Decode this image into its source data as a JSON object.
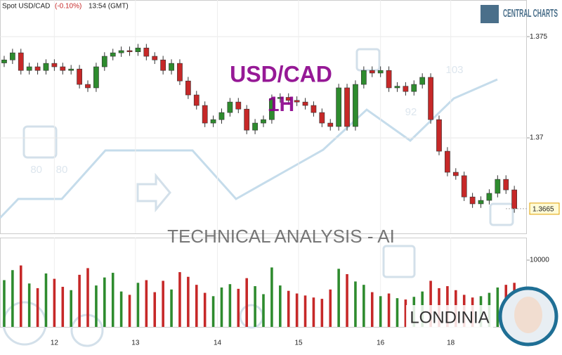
{
  "chart_data": {
    "type": "candlestick",
    "title": "Spot USD/CAD",
    "change": "(-0.10%)",
    "time": "13:54 (GMT)",
    "open": [
      1.3737,
      1.37385,
      1.3742,
      1.37333,
      1.37351,
      1.37333,
      1.37368,
      1.37351,
      1.37333,
      1.3734,
      1.37264,
      1.37247,
      1.37351,
      1.37403,
      1.3742,
      1.37431,
      1.37425,
      1.37444,
      1.37403,
      1.37385,
      1.37333,
      1.37368,
      1.37281,
      1.37212,
      1.3716,
      1.37073,
      1.3709,
      1.37125,
      1.37177,
      1.37142,
      1.37038,
      1.37073,
      1.3709,
      1.37194,
      1.372,
      1.37185,
      1.37177,
      1.3716,
      1.37125,
      1.37073,
      1.37056,
      1.37247,
      1.37056,
      1.37264,
      1.37333,
      1.3732,
      1.37333,
      1.37247,
      1.37255,
      1.37229,
      1.37264,
      1.37299,
      1.3709,
      1.36934,
      1.3683,
      1.36813,
      1.36708,
      1.36674,
      1.36691,
      1.36726,
      1.36795,
      1.36743
    ],
    "high": [
      1.37405,
      1.3744,
      1.3744,
      1.37371,
      1.37371,
      1.37388,
      1.37388,
      1.37371,
      1.3736,
      1.3736,
      1.37284,
      1.37371,
      1.37423,
      1.3744,
      1.37451,
      1.37451,
      1.37464,
      1.37464,
      1.37423,
      1.37405,
      1.37388,
      1.37388,
      1.37301,
      1.37232,
      1.3718,
      1.3711,
      1.37145,
      1.37197,
      1.37197,
      1.37162,
      1.37093,
      1.3711,
      1.37214,
      1.3722,
      1.3722,
      1.37205,
      1.37197,
      1.3718,
      1.37145,
      1.37093,
      1.37267,
      1.37267,
      1.37284,
      1.37353,
      1.37353,
      1.37353,
      1.37353,
      1.37275,
      1.37275,
      1.37284,
      1.37319,
      1.37319,
      1.3711,
      1.36954,
      1.3685,
      1.36833,
      1.36728,
      1.36711,
      1.36746,
      1.36815,
      1.36815,
      1.36763
    ],
    "low": [
      1.3735,
      1.37365,
      1.37313,
      1.37313,
      1.37313,
      1.37313,
      1.37331,
      1.37313,
      1.37313,
      1.37244,
      1.37227,
      1.37227,
      1.37331,
      1.37383,
      1.374,
      1.37405,
      1.37405,
      1.37383,
      1.37365,
      1.37313,
      1.37313,
      1.37261,
      1.37192,
      1.3714,
      1.37053,
      1.37053,
      1.3707,
      1.37105,
      1.37122,
      1.37018,
      1.37018,
      1.37053,
      1.3707,
      1.37174,
      1.37165,
      1.37157,
      1.3714,
      1.37105,
      1.37053,
      1.37036,
      1.37036,
      1.37036,
      1.37036,
      1.37244,
      1.373,
      1.373,
      1.37227,
      1.37227,
      1.37209,
      1.37209,
      1.37244,
      1.3707,
      1.36914,
      1.3681,
      1.36793,
      1.36688,
      1.36654,
      1.36654,
      1.36671,
      1.36706,
      1.36723,
      1.3663
    ],
    "close": [
      1.37385,
      1.3742,
      1.37333,
      1.37351,
      1.37333,
      1.37368,
      1.37351,
      1.37333,
      1.3734,
      1.37264,
      1.37247,
      1.37351,
      1.37403,
      1.3742,
      1.37431,
      1.37425,
      1.37444,
      1.37403,
      1.37385,
      1.37333,
      1.37368,
      1.37281,
      1.37212,
      1.3716,
      1.37073,
      1.3709,
      1.37125,
      1.37177,
      1.37142,
      1.37038,
      1.37073,
      1.3709,
      1.37194,
      1.372,
      1.37185,
      1.37177,
      1.3716,
      1.37125,
      1.37073,
      1.37056,
      1.37247,
      1.37056,
      1.37264,
      1.37333,
      1.3732,
      1.37333,
      1.37247,
      1.37255,
      1.37229,
      1.37264,
      1.37299,
      1.3709,
      1.36934,
      1.3683,
      1.36813,
      1.36708,
      1.36674,
      1.36691,
      1.36726,
      1.36795,
      1.36743,
      1.3665
    ],
    "up_color": "#2e8b2e",
    "down_color": "#c62828",
    "xlim": [
      -0.5,
      62.5
    ],
    "xticks": [
      {
        "value": 6,
        "label": "12"
      },
      {
        "value": 15.7,
        "label": "13"
      },
      {
        "value": 25.5,
        "label": "14"
      },
      {
        "value": 35.2,
        "label": "15"
      },
      {
        "value": 45,
        "label": "16"
      },
      {
        "value": 53.4,
        "label": "18"
      }
    ],
    "ylim": [
      1.36528,
      1.37681
    ],
    "yticks": [
      1.37,
      1.375
    ],
    "grid": true,
    "last_price": 1.3665,
    "volume": {
      "values": [
        7000,
        8500,
        9200,
        6500,
        5800,
        8000,
        7200,
        6000,
        5500,
        7800,
        8800,
        6200,
        7400,
        8100,
        5300,
        4800,
        6600,
        7000,
        5200,
        6900,
        5600,
        8200,
        7500,
        6300,
        5100,
        4600,
        5900,
        6400,
        5700,
        7300,
        6100,
        4900,
        8900,
        6200,
        5400,
        5000,
        4700,
        4400,
        4200,
        5600,
        8700,
        7900,
        6800,
        6300,
        5200,
        4600,
        5000,
        4300,
        4100,
        4500,
        5300,
        6900,
        5800,
        6100,
        5500,
        4800,
        4400,
        4600,
        5100,
        5900,
        6300,
        6600
      ],
      "ylim": [
        0,
        13370
      ],
      "yticks": [
        10000
      ]
    },
    "watermark": {
      "pair": "USD/CAD",
      "timeframe": "1H",
      "banner": "TECHNICAL  ANALYSIS - AI",
      "brand": "LONDINIA",
      "logo": "CENTRAL CHARTS",
      "scores": [
        80,
        80,
        92,
        103
      ]
    }
  }
}
